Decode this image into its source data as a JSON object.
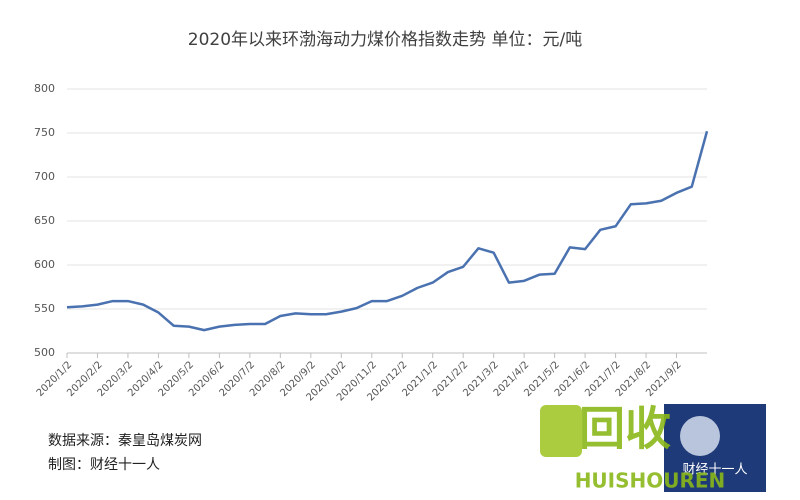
{
  "chart_data": {
    "type": "line",
    "title": "2020年以来环渤海动力煤价格指数走势   单位：元/吨",
    "categories": [
      "2020/1/2",
      null,
      "2020/2/2",
      null,
      "2020/3/2",
      null,
      "2020/4/2",
      null,
      "2020/5/2",
      null,
      "2020/6/2",
      null,
      "2020/7/2",
      null,
      "2020/8/2",
      null,
      "2020/9/2",
      null,
      "2020/10/2",
      null,
      "2020/11/2",
      null,
      "2020/12/2",
      null,
      "2021/1/2",
      null,
      "2021/2/2",
      null,
      "2021/3/2",
      null,
      "2021/4/2",
      null,
      "2021/5/2",
      null,
      "2021/6/2",
      null,
      "2021/7/2",
      null,
      "2021/8/2",
      null,
      "2021/9/2",
      null,
      null
    ],
    "series": [
      {
        "color": "#4a72b0",
        "values": [
          552,
          553,
          555,
          559,
          559,
          555,
          546,
          531,
          530,
          526,
          530,
          532,
          533,
          533,
          542,
          545,
          544,
          544,
          547,
          551,
          559,
          559,
          565,
          574,
          580,
          592,
          598,
          619,
          614,
          580,
          582,
          589,
          590,
          620,
          618,
          640,
          644,
          669,
          670,
          673,
          682,
          689,
          752
        ]
      }
    ],
    "ylim": [
      500,
      800
    ],
    "yticks": [
      500,
      550,
      600,
      650,
      700,
      750,
      800
    ],
    "grid": true,
    "source": "数据来源：秦皇岛煤炭网",
    "credit": "制图：财经十一人",
    "watermark": "回收",
    "watermark_sub": "HUISHOUREN",
    "logo": "财经十一人"
  }
}
